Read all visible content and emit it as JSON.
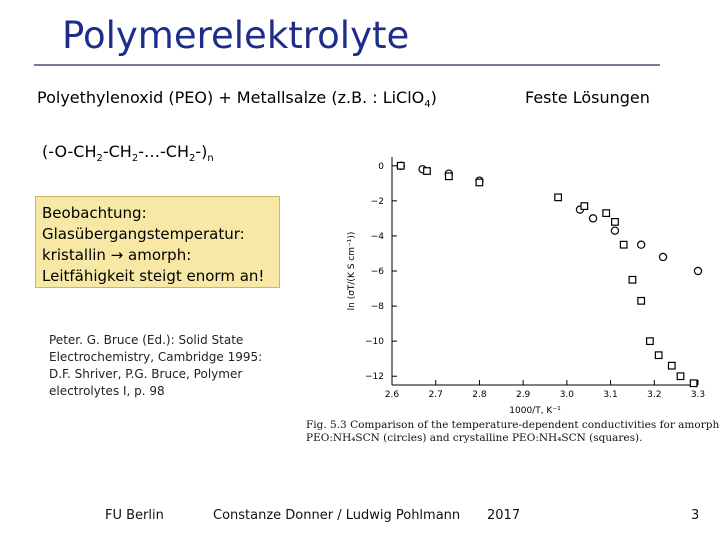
{
  "slide": {
    "title": "Polymerelektrolyte",
    "formula_text": "Polyethylenoxid (PEO) + Metallsalze (z.B. : LiClO",
    "formula_sub": "4",
    "formula_end": ")",
    "feste_loesungen": "Feste Lösungen",
    "chain": {
      "p1": "(-O-CH",
      "s1": "2",
      "p2": "-CH",
      "s2": "2",
      "p3": "-…-CH",
      "s3": "2",
      "p4": "-)",
      "s4": "n"
    },
    "observation": [
      "Beobachtung:",
      "Glasübergangstemperatur:",
      "kristallin → amorph:",
      "Leitfähigkeit steigt enorm an!"
    ],
    "reference": [
      "Peter. G. Bruce (Ed.): Solid State",
      "Electrochemistry, Cambridge 1995:",
      "D.F. Shriver, P.G. Bruce, Polymer",
      "electrolytes I, p. 98"
    ],
    "caption": [
      "Fig. 5.3  Comparison   of   the   temperature-dependent   conductivities   for   amorphous",
      "PEO:NH₄SCN (circles) and crystalline PEO:NH₄SCN (squares)."
    ],
    "footer": {
      "left": "FU Berlin",
      "center": "Constanze Donner / Ludwig Pohlmann",
      "year": "2017",
      "page": "3"
    }
  },
  "chart_data": {
    "type": "scatter",
    "xlabel": "1000/T, K⁻¹",
    "ylabel": "ln (σT/(K S cm⁻¹))",
    "xlim": [
      2.6,
      3.3
    ],
    "ylim": [
      -12.5,
      0.5
    ],
    "x_ticks": [
      2.6,
      2.7,
      2.8,
      2.9,
      3.0,
      3.1,
      3.2,
      3.3
    ],
    "y_ticks": [
      0,
      -2,
      -4,
      -6,
      -8,
      -10,
      -12
    ],
    "y_tick_labels": [
      "0",
      "−2",
      "−4",
      "−6",
      "−8",
      "−10",
      "−12"
    ],
    "grid": false,
    "series": [
      {
        "marker": "circle",
        "x": [
          2.62,
          2.67,
          2.73,
          2.8,
          3.03,
          3.06,
          3.11,
          3.17,
          3.22,
          3.3
        ],
        "y": [
          0.0,
          -0.2,
          -0.45,
          -0.85,
          -2.5,
          -3.0,
          -3.7,
          -4.5,
          -5.2,
          -6.0
        ]
      },
      {
        "marker": "square",
        "x": [
          2.62,
          2.68,
          2.73,
          2.8,
          2.98,
          3.04,
          3.09,
          3.11,
          3.13,
          3.15,
          3.17,
          3.19,
          3.21,
          3.24,
          3.26,
          3.29
        ],
        "y": [
          0.0,
          -0.3,
          -0.6,
          -0.95,
          -1.8,
          -2.3,
          -2.7,
          -3.2,
          -4.5,
          -6.5,
          -7.7,
          -10.0,
          -10.8,
          -11.4,
          -12.0,
          -12.4
        ]
      }
    ]
  }
}
